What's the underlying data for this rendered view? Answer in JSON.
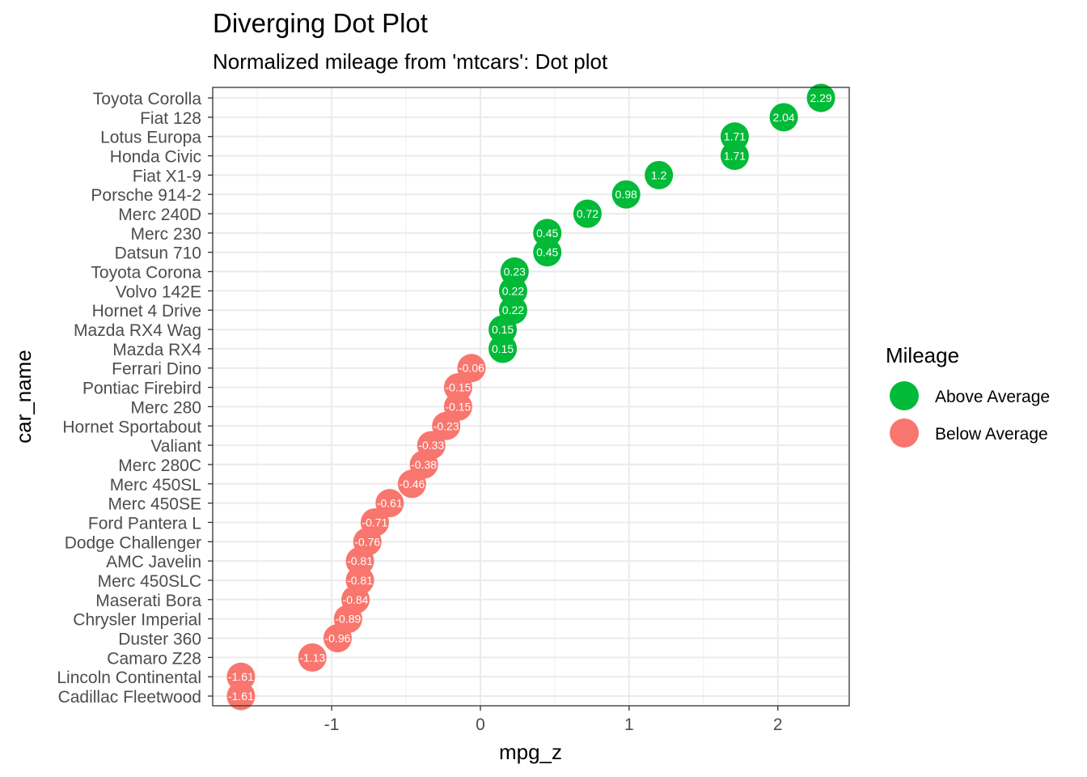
{
  "chart_data": {
    "type": "scatter",
    "title": "Diverging Dot Plot",
    "subtitle": "Normalized mileage from 'mtcars': Dot plot",
    "xlabel": "mpg_z",
    "ylabel": "car_name",
    "xlim": [
      -1.8,
      2.48
    ],
    "x_ticks": [
      -1,
      0,
      1,
      2
    ],
    "x_tick_labels": [
      "-1",
      "0",
      "1",
      "2"
    ],
    "grid": true,
    "legend": {
      "title": "Mileage",
      "placement": "right",
      "entries": [
        {
          "label": "Above Average",
          "color": "#00BA38"
        },
        {
          "label": "Below Average",
          "color": "#F8766D"
        }
      ]
    },
    "points": [
      {
        "car": "Toyota Corolla",
        "mpg_z": 2.29,
        "label": "2.29",
        "group": "Above Average"
      },
      {
        "car": "Fiat 128",
        "mpg_z": 2.04,
        "label": "2.04",
        "group": "Above Average"
      },
      {
        "car": "Lotus Europa",
        "mpg_z": 1.71,
        "label": "1.71",
        "group": "Above Average"
      },
      {
        "car": "Honda Civic",
        "mpg_z": 1.71,
        "label": "1.71",
        "group": "Above Average"
      },
      {
        "car": "Fiat X1-9",
        "mpg_z": 1.2,
        "label": "1.2",
        "group": "Above Average"
      },
      {
        "car": "Porsche 914-2",
        "mpg_z": 0.98,
        "label": "0.98",
        "group": "Above Average"
      },
      {
        "car": "Merc 240D",
        "mpg_z": 0.72,
        "label": "0.72",
        "group": "Above Average"
      },
      {
        "car": "Merc 230",
        "mpg_z": 0.45,
        "label": "0.45",
        "group": "Above Average"
      },
      {
        "car": "Datsun 710",
        "mpg_z": 0.45,
        "label": "0.45",
        "group": "Above Average"
      },
      {
        "car": "Toyota Corona",
        "mpg_z": 0.23,
        "label": "0.23",
        "group": "Above Average"
      },
      {
        "car": "Volvo 142E",
        "mpg_z": 0.22,
        "label": "0.22",
        "group": "Above Average"
      },
      {
        "car": "Hornet 4 Drive",
        "mpg_z": 0.22,
        "label": "0.22",
        "group": "Above Average"
      },
      {
        "car": "Mazda RX4 Wag",
        "mpg_z": 0.15,
        "label": "0.15",
        "group": "Above Average"
      },
      {
        "car": "Mazda RX4",
        "mpg_z": 0.15,
        "label": "0.15",
        "group": "Above Average"
      },
      {
        "car": "Ferrari Dino",
        "mpg_z": -0.06,
        "label": "-0.06",
        "group": "Below Average"
      },
      {
        "car": "Pontiac Firebird",
        "mpg_z": -0.15,
        "label": "-0.15",
        "group": "Below Average"
      },
      {
        "car": "Merc 280",
        "mpg_z": -0.15,
        "label": "-0.15",
        "group": "Below Average"
      },
      {
        "car": "Hornet Sportabout",
        "mpg_z": -0.23,
        "label": "-0.23",
        "group": "Below Average"
      },
      {
        "car": "Valiant",
        "mpg_z": -0.33,
        "label": "-0.33",
        "group": "Below Average"
      },
      {
        "car": "Merc 280C",
        "mpg_z": -0.38,
        "label": "-0.38",
        "group": "Below Average"
      },
      {
        "car": "Merc 450SL",
        "mpg_z": -0.46,
        "label": "-0.46",
        "group": "Below Average"
      },
      {
        "car": "Merc 450SE",
        "mpg_z": -0.61,
        "label": "-0.61",
        "group": "Below Average"
      },
      {
        "car": "Ford Pantera L",
        "mpg_z": -0.71,
        "label": "-0.71",
        "group": "Below Average"
      },
      {
        "car": "Dodge Challenger",
        "mpg_z": -0.76,
        "label": "-0.76",
        "group": "Below Average"
      },
      {
        "car": "AMC Javelin",
        "mpg_z": -0.81,
        "label": "-0.81",
        "group": "Below Average"
      },
      {
        "car": "Merc 450SLC",
        "mpg_z": -0.81,
        "label": "-0.81",
        "group": "Below Average"
      },
      {
        "car": "Maserati Bora",
        "mpg_z": -0.84,
        "label": "-0.84",
        "group": "Below Average"
      },
      {
        "car": "Chrysler Imperial",
        "mpg_z": -0.89,
        "label": "-0.89",
        "group": "Below Average"
      },
      {
        "car": "Duster 360",
        "mpg_z": -0.96,
        "label": "-0.96",
        "group": "Below Average"
      },
      {
        "car": "Camaro Z28",
        "mpg_z": -1.13,
        "label": "-1.13",
        "group": "Below Average"
      },
      {
        "car": "Lincoln Continental",
        "mpg_z": -1.61,
        "label": "-1.61",
        "group": "Below Average"
      },
      {
        "car": "Cadillac Fleetwood",
        "mpg_z": -1.61,
        "label": "-1.61",
        "group": "Below Average"
      }
    ]
  }
}
